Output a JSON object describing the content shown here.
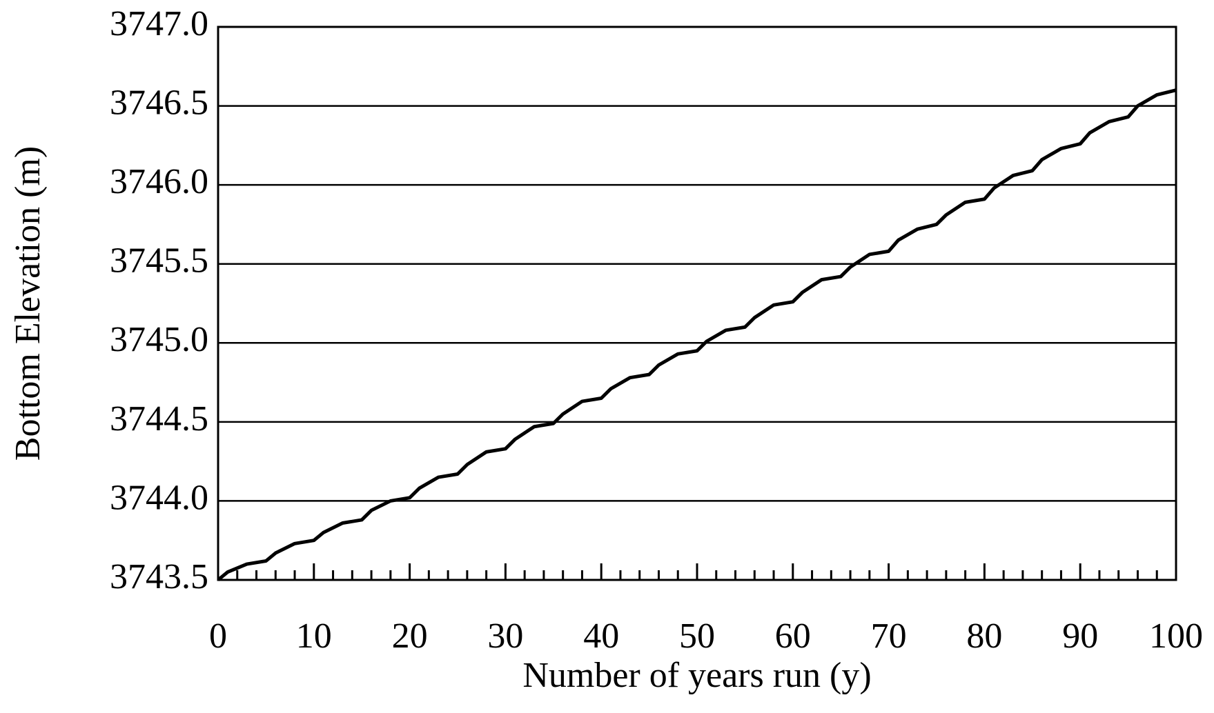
{
  "chart_data": {
    "type": "line",
    "xlabel": "Number of years run (y)",
    "ylabel": "Bottom Elevation (m)",
    "x": [
      0,
      1,
      3,
      5,
      6,
      8,
      10,
      11,
      13,
      15,
      16,
      18,
      20,
      21,
      23,
      25,
      26,
      28,
      30,
      31,
      33,
      35,
      36,
      38,
      40,
      41,
      43,
      45,
      46,
      48,
      50,
      51,
      53,
      55,
      56,
      58,
      60,
      61,
      63,
      65,
      66,
      68,
      70,
      71,
      73,
      75,
      76,
      78,
      80,
      81,
      83,
      85,
      86,
      88,
      90,
      91,
      93,
      95,
      96,
      98,
      100
    ],
    "series": [
      {
        "color": "#000000",
        "values": [
          3743.5,
          3743.55,
          3743.6,
          3743.62,
          3743.67,
          3743.73,
          3743.75,
          3743.8,
          3743.86,
          3743.88,
          3743.94,
          3744.0,
          3744.02,
          3744.08,
          3744.15,
          3744.17,
          3744.23,
          3744.31,
          3744.33,
          3744.39,
          3744.47,
          3744.49,
          3744.55,
          3744.63,
          3744.65,
          3744.71,
          3744.78,
          3744.8,
          3744.86,
          3744.93,
          3744.95,
          3745.01,
          3745.08,
          3745.1,
          3745.16,
          3745.24,
          3745.26,
          3745.32,
          3745.4,
          3745.42,
          3745.48,
          3745.56,
          3745.58,
          3745.65,
          3745.72,
          3745.75,
          3745.81,
          3745.89,
          3745.91,
          3745.98,
          3746.06,
          3746.09,
          3746.16,
          3746.23,
          3746.26,
          3746.33,
          3746.4,
          3746.43,
          3746.5,
          3746.57,
          3746.6
        ]
      }
    ],
    "xlim": [
      0,
      100
    ],
    "xticks": [
      0,
      10,
      20,
      30,
      40,
      50,
      60,
      70,
      80,
      90,
      100
    ],
    "xminorticks": [
      2,
      4,
      6,
      8,
      12,
      14,
      16,
      18,
      22,
      24,
      26,
      28,
      32,
      34,
      36,
      38,
      42,
      44,
      46,
      48,
      52,
      54,
      56,
      58,
      62,
      64,
      66,
      68,
      72,
      74,
      76,
      78,
      82,
      84,
      86,
      88,
      92,
      94,
      96,
      98
    ],
    "ylim": [
      3743.5,
      3747.0
    ],
    "yticks": [
      3743.5,
      {
        "value": 3744.0,
        "label": "3744.0"
      },
      3744.5,
      {
        "value": 3745.0,
        "label": "3745.0"
      },
      3745.5,
      {
        "value": 3746.0,
        "label": "3746.0"
      },
      3746.5,
      {
        "value": 3747.0,
        "label": "3747.0"
      }
    ],
    "grid": true
  }
}
